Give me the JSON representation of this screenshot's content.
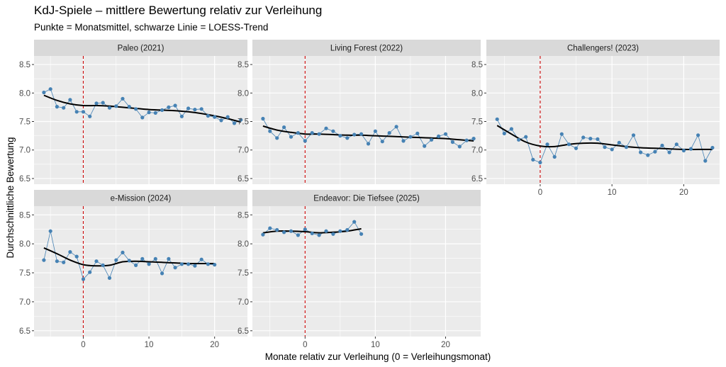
{
  "title": "KdJ-Spiele – mittlere Bewertung relativ zur Verleihung",
  "subtitle": "Punkte = Monatsmittel, schwarze Linie = LOESS-Trend",
  "colors": {
    "panel_bg": "#ebebeb",
    "grid": "#ffffff",
    "strip_bg": "#d9d9d9",
    "points": "#4682b4",
    "trend": "#000000",
    "vline": "#cc0000"
  },
  "chart_data": {
    "type": "scatter",
    "facet": "wrap",
    "xlabel": "Monate relativ zur Verleihung (0 = Verleihungsmonat)",
    "ylabel": "Durchschnittliche Bewertung",
    "xlim": [
      -7.5,
      25
    ],
    "ylim": [
      6.4,
      8.65
    ],
    "x_ticks": [
      0,
      10,
      20
    ],
    "y_ticks": [
      6.5,
      7.0,
      7.5,
      8.0,
      8.5
    ],
    "y_tick_labels": [
      "6.5",
      "7.0",
      "7.5",
      "8.0",
      "8.5"
    ],
    "reference_line_x": 0,
    "panels": [
      {
        "name": "Paleo (2021)",
        "x": [
          -6,
          -5,
          -4,
          -3,
          -2,
          -1,
          0,
          1,
          2,
          3,
          4,
          5,
          6,
          7,
          8,
          9,
          10,
          11,
          12,
          13,
          14,
          15,
          16,
          17,
          18,
          19,
          20,
          21,
          22,
          23,
          24
        ],
        "values": [
          8.01,
          8.07,
          7.76,
          7.74,
          7.88,
          7.67,
          7.67,
          7.59,
          7.82,
          7.83,
          7.74,
          7.77,
          7.9,
          7.76,
          7.72,
          7.57,
          7.66,
          7.65,
          7.7,
          7.75,
          7.78,
          7.59,
          7.73,
          7.71,
          7.72,
          7.6,
          7.58,
          7.52,
          7.58,
          7.47,
          7.53
        ],
        "trend_x": [
          -6,
          -4,
          -2,
          0,
          2,
          4,
          6,
          8,
          10,
          12,
          14,
          16,
          18,
          20,
          22,
          24
        ],
        "trend": [
          7.96,
          7.87,
          7.81,
          7.78,
          7.78,
          7.77,
          7.75,
          7.73,
          7.71,
          7.7,
          7.69,
          7.67,
          7.64,
          7.6,
          7.55,
          7.49
        ]
      },
      {
        "name": "Living Forest (2022)",
        "x": [
          -6,
          -5,
          -4,
          -3,
          -2,
          -1,
          0,
          1,
          2,
          3,
          4,
          5,
          6,
          7,
          8,
          9,
          10,
          11,
          12,
          13,
          14,
          15,
          16,
          17,
          18,
          19,
          20,
          21,
          22,
          23,
          24
        ],
        "values": [
          7.55,
          7.33,
          7.21,
          7.4,
          7.23,
          7.3,
          7.16,
          7.3,
          7.28,
          7.38,
          7.33,
          7.25,
          7.21,
          7.27,
          7.28,
          7.11,
          7.33,
          7.15,
          7.3,
          7.41,
          7.16,
          7.23,
          7.29,
          7.07,
          7.18,
          7.24,
          7.28,
          7.14,
          7.06,
          7.17,
          7.2
        ],
        "trend_x": [
          -6,
          -4,
          -2,
          0,
          2,
          4,
          6,
          8,
          10,
          12,
          14,
          16,
          18,
          20,
          22,
          24
        ],
        "trend": [
          7.42,
          7.35,
          7.31,
          7.28,
          7.28,
          7.27,
          7.26,
          7.26,
          7.25,
          7.24,
          7.23,
          7.22,
          7.21,
          7.2,
          7.18,
          7.16
        ]
      },
      {
        "name": "Challengers! (2023)",
        "x": [
          -6,
          -5,
          -4,
          -3,
          -2,
          -1,
          0,
          1,
          2,
          3,
          4,
          5,
          6,
          7,
          8,
          9,
          10,
          11,
          12,
          13,
          14,
          15,
          16,
          17,
          18,
          19,
          20,
          21,
          22,
          23,
          24
        ],
        "values": [
          7.54,
          7.29,
          7.37,
          7.18,
          7.23,
          6.83,
          6.78,
          7.1,
          6.88,
          7.28,
          7.1,
          7.03,
          7.22,
          7.2,
          7.19,
          7.05,
          7.01,
          7.13,
          7.05,
          7.26,
          6.96,
          6.91,
          6.97,
          7.08,
          6.96,
          7.1,
          6.99,
          7.02,
          7.26,
          6.81,
          7.04
        ],
        "trend_x": [
          -6,
          -4,
          -2,
          0,
          2,
          4,
          6,
          8,
          10,
          12,
          14,
          16,
          18,
          20,
          22,
          24
        ],
        "trend": [
          7.43,
          7.28,
          7.14,
          7.07,
          7.06,
          7.1,
          7.12,
          7.12,
          7.09,
          7.06,
          7.04,
          7.03,
          7.02,
          7.01,
          7.01,
          7.01
        ]
      },
      {
        "name": "e-Mission (2024)",
        "x": [
          -6,
          -5,
          -4,
          -3,
          -2,
          -1,
          0,
          1,
          2,
          3,
          4,
          5,
          6,
          7,
          8,
          9,
          10,
          11,
          12,
          13,
          14,
          15,
          16,
          17,
          18,
          19,
          20
        ],
        "values": [
          7.72,
          8.22,
          7.7,
          7.68,
          7.86,
          7.78,
          7.39,
          7.51,
          7.7,
          7.63,
          7.41,
          7.72,
          7.85,
          7.71,
          7.63,
          7.74,
          7.65,
          7.74,
          7.49,
          7.74,
          7.59,
          7.65,
          7.65,
          7.62,
          7.73,
          7.65,
          7.64
        ],
        "trend_x": [
          -6,
          -4,
          -2,
          0,
          2,
          4,
          6,
          8,
          10,
          12,
          14,
          16,
          18,
          20
        ],
        "trend": [
          7.93,
          7.83,
          7.72,
          7.64,
          7.62,
          7.63,
          7.69,
          7.7,
          7.69,
          7.68,
          7.67,
          7.66,
          7.66,
          7.66
        ]
      },
      {
        "name": "Endeavor: Die Tiefsee (2025)",
        "x": [
          -6,
          -5,
          -4,
          -3,
          -2,
          -1,
          0,
          1,
          2,
          3,
          4,
          5,
          6,
          7,
          8
        ],
        "values": [
          8.16,
          8.27,
          8.24,
          8.2,
          8.22,
          8.15,
          8.25,
          8.18,
          8.15,
          8.22,
          8.17,
          8.22,
          8.24,
          8.38,
          8.17
        ],
        "trend_x": [
          -6,
          -4,
          -2,
          0,
          2,
          4,
          6,
          8
        ],
        "trend": [
          8.19,
          8.22,
          8.22,
          8.21,
          8.19,
          8.2,
          8.22,
          8.26
        ]
      }
    ]
  }
}
